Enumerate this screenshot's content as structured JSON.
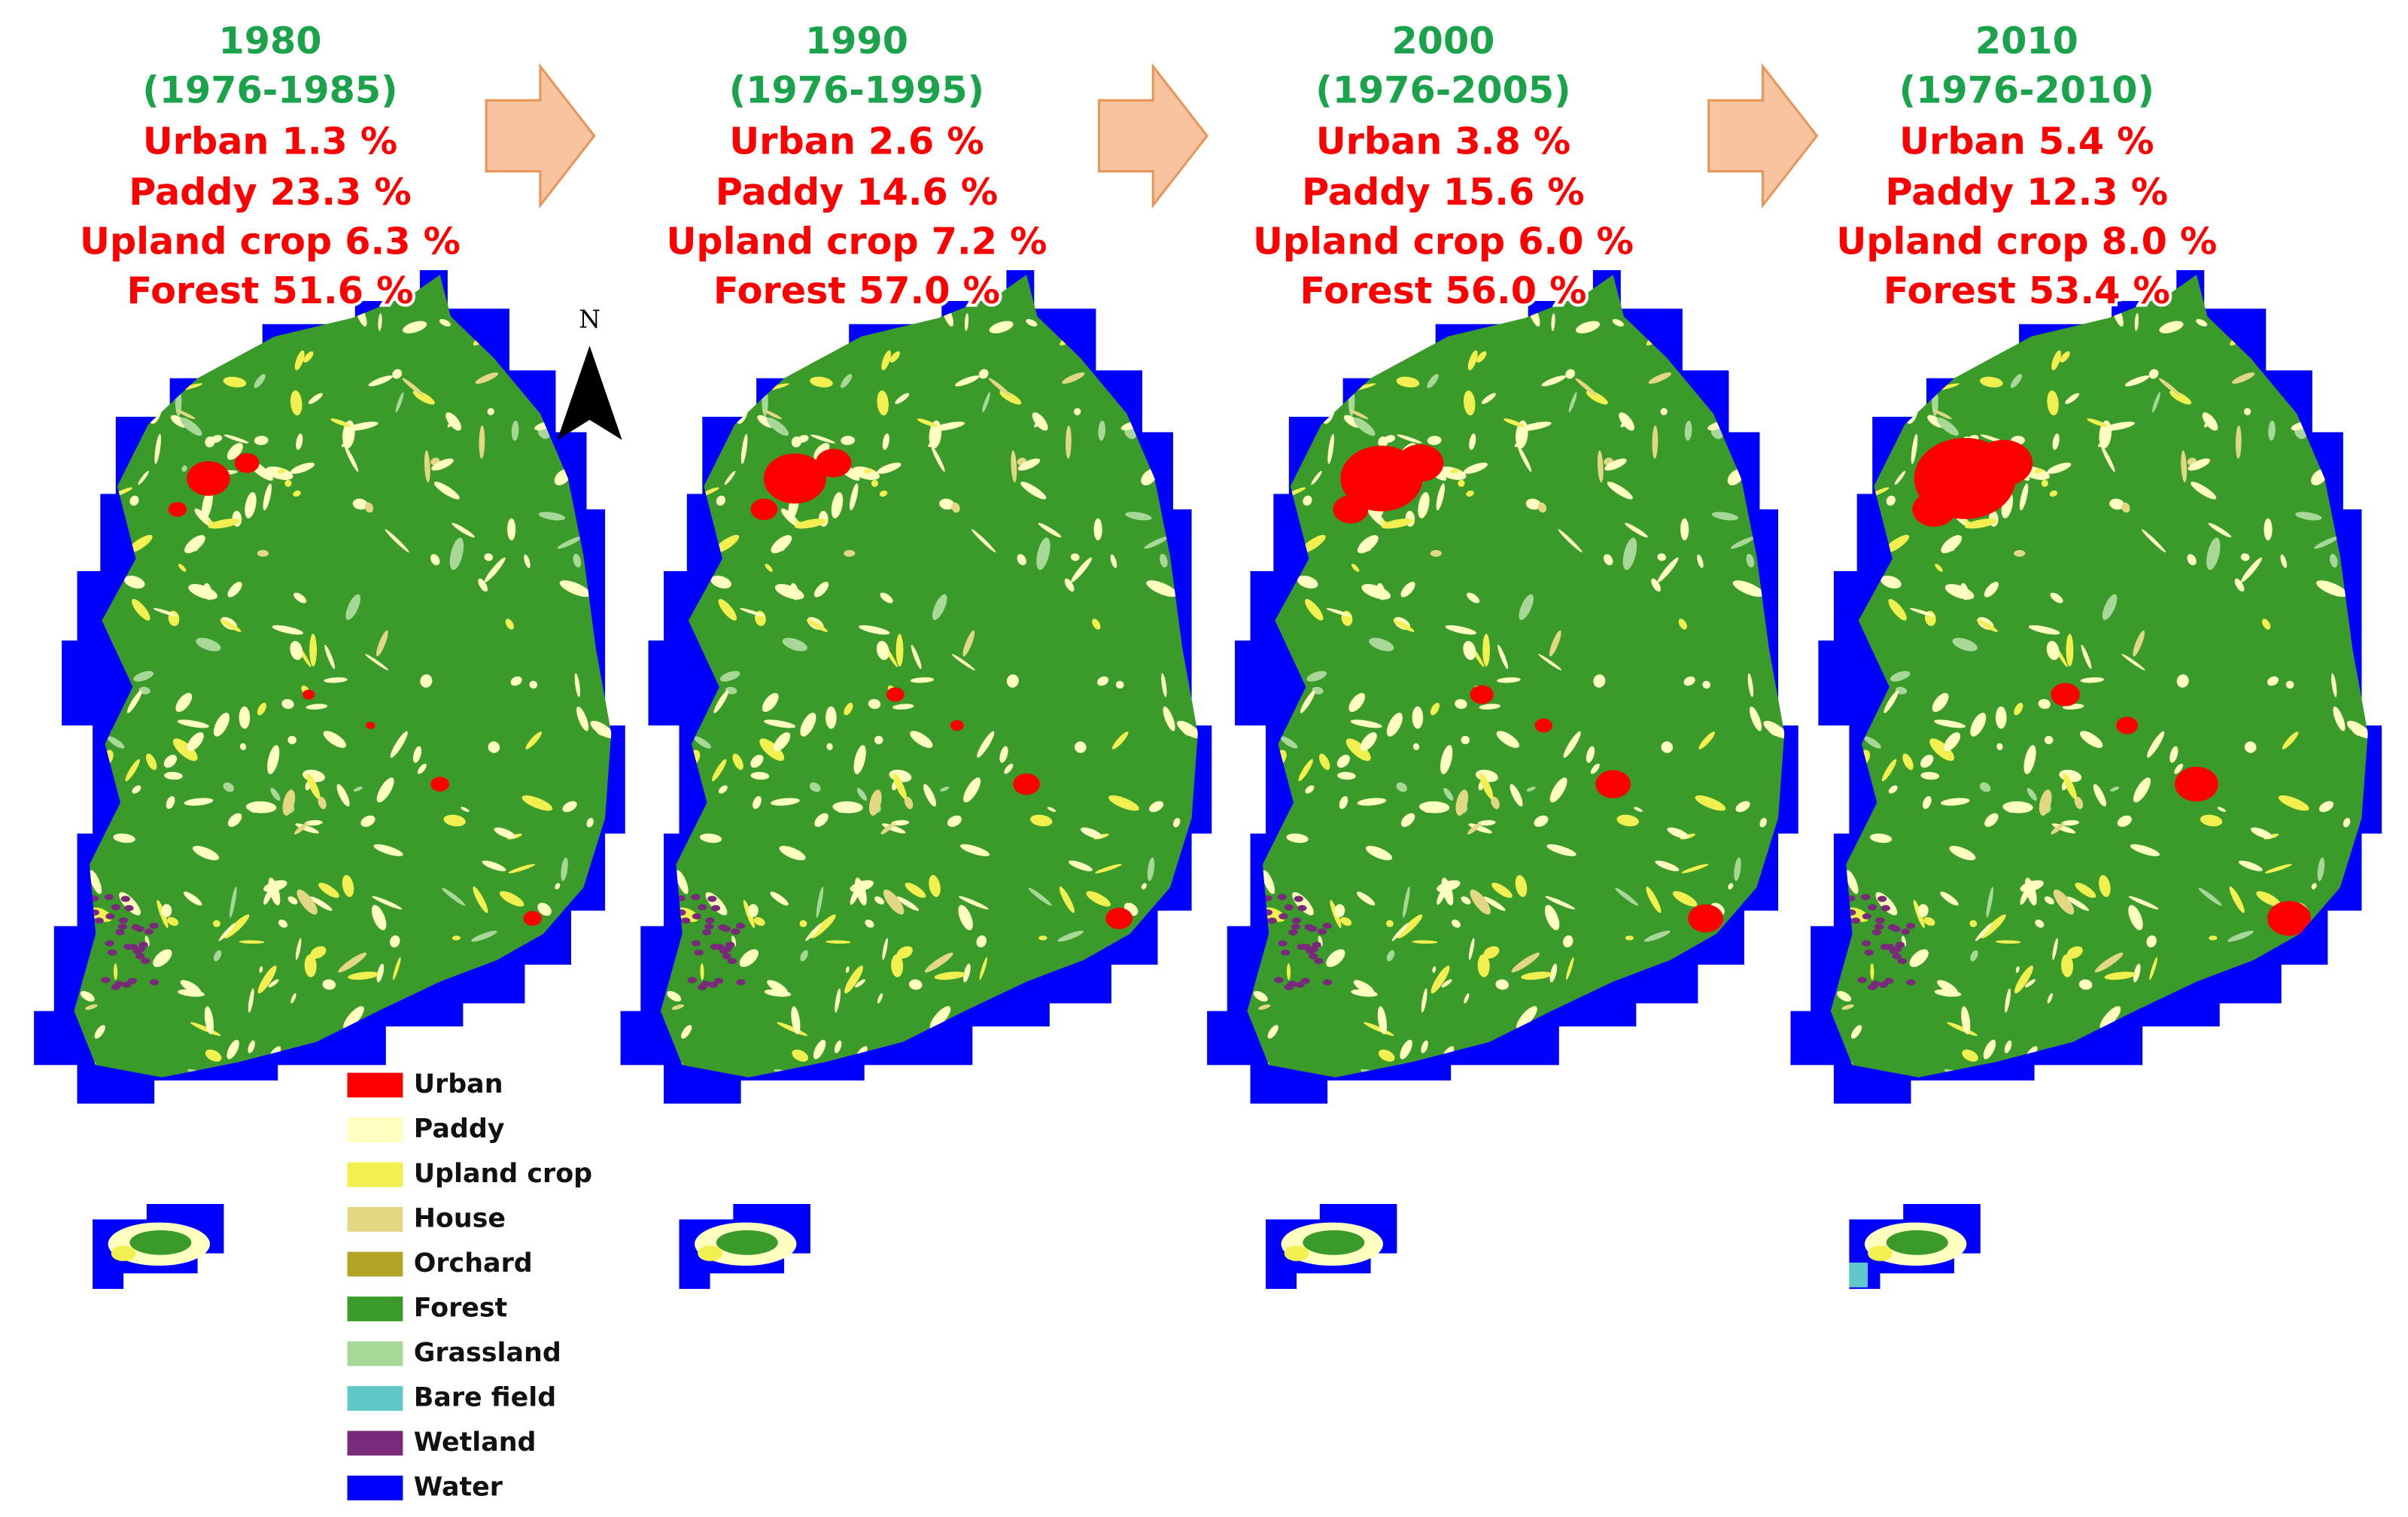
{
  "panels": [
    {
      "year": "1980",
      "period": "(1976-1985)",
      "stats": [
        "Urban 1.3 %",
        "Paddy 23.3 %",
        "Upland crop 6.3 %",
        "Forest 51.6 %"
      ]
    },
    {
      "year": "1990",
      "period": "(1976-1995)",
      "stats": [
        "Urban 2.6 %",
        "Paddy 14.6 %",
        "Upland crop 7.2 %",
        "Forest 57.0 %"
      ]
    },
    {
      "year": "2000",
      "period": "(1976-2005)",
      "stats": [
        "Urban 3.8 %",
        "Paddy 15.6 %",
        "Upland crop 6.0 %",
        "Forest 56.0 %"
      ]
    },
    {
      "year": "2010",
      "period": "(1976-2010)",
      "stats": [
        "Urban 5.4 %",
        "Paddy 12.3 %",
        "Upland crop 8.0 %",
        "Forest 53.4 %"
      ]
    }
  ],
  "title_color": "#1aa34a",
  "stat_color": "#ff0000",
  "north_label": "N",
  "legend": [
    {
      "label": "Urban",
      "color": "#ff0000"
    },
    {
      "label": "Paddy",
      "color": "#ffffc0"
    },
    {
      "label": "Upland crop",
      "color": "#f2f050"
    },
    {
      "label": "House",
      "color": "#e2d884"
    },
    {
      "label": "Orchard",
      "color": "#b3a325"
    },
    {
      "label": "Forest",
      "color": "#3a9a2a"
    },
    {
      "label": "Grassland",
      "color": "#a8d898"
    },
    {
      "label": "Bare field",
      "color": "#60c8c8"
    },
    {
      "label": "Wetland",
      "color": "#7a2a7a"
    },
    {
      "label": "Water",
      "color": "#0000ff"
    }
  ]
}
